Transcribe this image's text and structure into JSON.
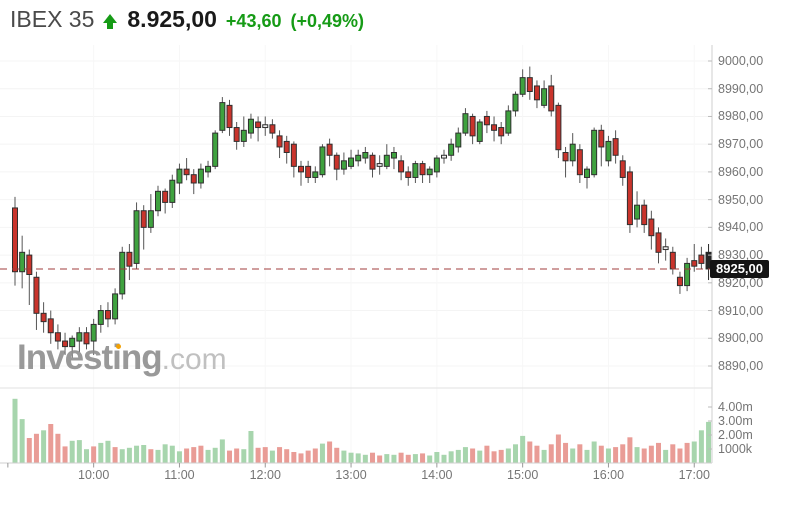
{
  "header": {
    "symbol": "IBEX 35",
    "last_price": "8.925,00",
    "change": "+43,60",
    "change_percent": "(+0,49%)",
    "direction": "up",
    "up_color": "#169b16"
  },
  "watermark": {
    "brand": "Investing",
    "suffix": ".com"
  },
  "chart_data": {
    "type": "candlestick",
    "title": "IBEX 35 intraday 5-minute candlestick chart with volume",
    "legend_position": "none",
    "grid": "on",
    "price_axis": {
      "min": 8890,
      "max": 9000,
      "step": 10,
      "labels": [
        "9000,00",
        "8990,00",
        "8980,00",
        "8970,00",
        "8960,00",
        "8950,00",
        "8940,00",
        "8930,00",
        "8920,00",
        "8910,00",
        "8900,00",
        "8890,00"
      ],
      "values": [
        9000,
        8990,
        8980,
        8970,
        8960,
        8950,
        8940,
        8930,
        8920,
        8910,
        8900,
        8890
      ]
    },
    "volume_axis": {
      "unit": "shares",
      "labels": [
        "4.00m",
        "3.00m",
        "2.00m",
        "1000k"
      ],
      "values": [
        4,
        3,
        2,
        1
      ]
    },
    "time_axis": {
      "labels": [
        "10:00",
        "11:00",
        "12:00",
        "13:00",
        "14:00",
        "15:00",
        "16:00",
        "17:00"
      ],
      "candle_indices": [
        11,
        23,
        35,
        47,
        59,
        71,
        83,
        95
      ],
      "extra_tick_indices": [
        -1
      ]
    },
    "last_price_line": {
      "value": 8925.0,
      "label": "8925,00"
    },
    "candles": [
      [
        8947,
        8951,
        8919,
        8924
      ],
      [
        8924,
        8937,
        8918,
        8931
      ],
      [
        8930,
        8932,
        8912,
        8923
      ],
      [
        8922,
        8924,
        8903,
        8909
      ],
      [
        8909,
        8913,
        8902,
        8906
      ],
      [
        8907,
        8910,
        8898,
        8902
      ],
      [
        8902,
        8905,
        8896,
        8899
      ],
      [
        8899,
        8902,
        8894,
        8897
      ],
      [
        8897,
        8901,
        8893,
        8900
      ],
      [
        8899,
        8904,
        8895,
        8902
      ],
      [
        8902,
        8904,
        8896,
        8898
      ],
      [
        8899,
        8907,
        8894,
        8905
      ],
      [
        8905,
        8912,
        8902,
        8910
      ],
      [
        8910,
        8913,
        8904,
        8907
      ],
      [
        8907,
        8918,
        8905,
        8916
      ],
      [
        8916,
        8933,
        8914,
        8931
      ],
      [
        8931,
        8934,
        8921,
        8926
      ],
      [
        8927,
        8949,
        8925,
        8946
      ],
      [
        8946,
        8948,
        8932,
        8940
      ],
      [
        8940,
        8952,
        8938,
        8946
      ],
      [
        8946,
        8955,
        8944,
        8953
      ],
      [
        8953,
        8954,
        8945,
        8949
      ],
      [
        8949,
        8959,
        8947,
        8957
      ],
      [
        8956,
        8963,
        8952,
        8961
      ],
      [
        8961,
        8965,
        8957,
        8959
      ],
      [
        8959,
        8961,
        8952,
        8956
      ],
      [
        8956,
        8963,
        8954,
        8961
      ],
      [
        8960,
        8964,
        8958,
        8962
      ],
      [
        8962,
        8975,
        8961,
        8974
      ],
      [
        8975,
        8987,
        8974,
        8985
      ],
      [
        8984,
        8986,
        8973,
        8976
      ],
      [
        8976,
        8978,
        8968,
        8971
      ],
      [
        8971,
        8980,
        8969,
        8975
      ],
      [
        8974,
        8981,
        8972,
        8979
      ],
      [
        8978,
        8980,
        8971,
        8976
      ],
      [
        8976,
        8980,
        8973,
        8977
      ],
      [
        8977,
        8979,
        8972,
        8974
      ],
      [
        8973,
        8975,
        8965,
        8969
      ],
      [
        8971,
        8973,
        8963,
        8967
      ],
      [
        8970,
        8971,
        8958,
        8962
      ],
      [
        8962,
        8964,
        8955,
        8960
      ],
      [
        8962,
        8964,
        8956,
        8958
      ],
      [
        8958,
        8962,
        8956,
        8960
      ],
      [
        8959,
        8970,
        8958,
        8969
      ],
      [
        8970,
        8972,
        8962,
        8966
      ],
      [
        8966,
        8967,
        8957,
        8961
      ],
      [
        8961,
        8967,
        8959,
        8964
      ],
      [
        8962,
        8968,
        8961,
        8965
      ],
      [
        8964,
        8968,
        8962,
        8966
      ],
      [
        8965,
        8969,
        8963,
        8967
      ],
      [
        8966,
        8967,
        8958,
        8961
      ],
      [
        8963,
        8966,
        8959,
        8962
      ],
      [
        8962,
        8970,
        8961,
        8966
      ],
      [
        8965,
        8969,
        8961,
        8967
      ],
      [
        8964,
        8966,
        8957,
        8960
      ],
      [
        8960,
        8962,
        8955,
        8958
      ],
      [
        8958,
        8964,
        8956,
        8963
      ],
      [
        8963,
        8964,
        8956,
        8959
      ],
      [
        8959,
        8962,
        8956,
        8961
      ],
      [
        8960,
        8966,
        8958,
        8965
      ],
      [
        8965,
        8968,
        8963,
        8966
      ],
      [
        8966,
        8972,
        8964,
        8970
      ],
      [
        8969,
        8976,
        8967,
        8974
      ],
      [
        8974,
        8983,
        8973,
        8981
      ],
      [
        8980,
        8981,
        8970,
        8973
      ],
      [
        8971,
        8979,
        8970,
        8978
      ],
      [
        8980,
        8982,
        8974,
        8977
      ],
      [
        8977,
        8980,
        8971,
        8975
      ],
      [
        8976,
        8978,
        8970,
        8973
      ],
      [
        8974,
        8984,
        8973,
        8982
      ],
      [
        8982,
        8989,
        8980,
        8988
      ],
      [
        8988,
        8997,
        8987,
        8994
      ],
      [
        8994,
        8998,
        8986,
        8989
      ],
      [
        8991,
        8993,
        8983,
        8986
      ],
      [
        8984,
        8993,
        8983,
        8990
      ],
      [
        8991,
        8995,
        8980,
        8982
      ],
      [
        8984,
        8985,
        8965,
        8968
      ],
      [
        8967,
        8969,
        8958,
        8964
      ],
      [
        8964,
        8974,
        8962,
        8970
      ],
      [
        8968,
        8970,
        8956,
        8959
      ],
      [
        8958,
        8962,
        8954,
        8961
      ],
      [
        8959,
        8976,
        8958,
        8975
      ],
      [
        8975,
        8977,
        8962,
        8969
      ],
      [
        8964,
        8973,
        8962,
        8971
      ],
      [
        8972,
        8975,
        8963,
        8966
      ],
      [
        8964,
        8966,
        8955,
        8958
      ],
      [
        8960,
        8962,
        8938,
        8941
      ],
      [
        8943,
        8953,
        8940,
        8948
      ],
      [
        8948,
        8950,
        8938,
        8941
      ],
      [
        8943,
        8946,
        8932,
        8937
      ],
      [
        8938,
        8940,
        8927,
        8931
      ],
      [
        8933,
        8936,
        8928,
        8932
      ],
      [
        8931,
        8933,
        8923,
        8925
      ],
      [
        8922,
        8924,
        8916,
        8919
      ],
      [
        8919,
        8929,
        8917,
        8927
      ],
      [
        8928,
        8934,
        8924,
        8926
      ],
      [
        8930,
        8933,
        8925,
        8927
      ],
      [
        8931,
        8934,
        8921,
        8925
      ]
    ],
    "volume": [
      [
        4.55,
        "g"
      ],
      [
        3.1,
        "g"
      ],
      [
        1.75,
        "r"
      ],
      [
        2.05,
        "r"
      ],
      [
        2.3,
        "g"
      ],
      [
        2.75,
        "r"
      ],
      [
        2.05,
        "r"
      ],
      [
        1.15,
        "r"
      ],
      [
        1.55,
        "g"
      ],
      [
        1.6,
        "g"
      ],
      [
        0.95,
        "g"
      ],
      [
        1.15,
        "r"
      ],
      [
        1.4,
        "g"
      ],
      [
        1.55,
        "g"
      ],
      [
        1.1,
        "r"
      ],
      [
        0.95,
        "g"
      ],
      [
        1.05,
        "g"
      ],
      [
        1.2,
        "g"
      ],
      [
        1.25,
        "g"
      ],
      [
        0.95,
        "r"
      ],
      [
        0.9,
        "g"
      ],
      [
        1.3,
        "g"
      ],
      [
        1.2,
        "g"
      ],
      [
        0.8,
        "g"
      ],
      [
        1.0,
        "r"
      ],
      [
        1.1,
        "r"
      ],
      [
        1.2,
        "r"
      ],
      [
        0.9,
        "g"
      ],
      [
        1.05,
        "g"
      ],
      [
        1.65,
        "g"
      ],
      [
        0.85,
        "r"
      ],
      [
        1.0,
        "r"
      ],
      [
        0.95,
        "g"
      ],
      [
        2.25,
        "g"
      ],
      [
        1.05,
        "r"
      ],
      [
        1.1,
        "r"
      ],
      [
        0.85,
        "g"
      ],
      [
        1.1,
        "r"
      ],
      [
        0.95,
        "r"
      ],
      [
        0.75,
        "r"
      ],
      [
        0.65,
        "r"
      ],
      [
        0.85,
        "r"
      ],
      [
        1.0,
        "r"
      ],
      [
        1.35,
        "g"
      ],
      [
        1.5,
        "r"
      ],
      [
        1.05,
        "r"
      ],
      [
        0.85,
        "g"
      ],
      [
        0.7,
        "g"
      ],
      [
        0.65,
        "g"
      ],
      [
        0.55,
        "g"
      ],
      [
        0.7,
        "r"
      ],
      [
        0.5,
        "r"
      ],
      [
        0.6,
        "g"
      ],
      [
        0.55,
        "g"
      ],
      [
        0.7,
        "r"
      ],
      [
        0.55,
        "r"
      ],
      [
        0.6,
        "g"
      ],
      [
        0.65,
        "r"
      ],
      [
        0.5,
        "g"
      ],
      [
        0.75,
        "g"
      ],
      [
        0.55,
        "g"
      ],
      [
        0.8,
        "g"
      ],
      [
        0.9,
        "g"
      ],
      [
        1.1,
        "g"
      ],
      [
        1.0,
        "r"
      ],
      [
        0.85,
        "g"
      ],
      [
        1.2,
        "r"
      ],
      [
        0.8,
        "r"
      ],
      [
        0.9,
        "r"
      ],
      [
        1.0,
        "g"
      ],
      [
        1.3,
        "g"
      ],
      [
        1.9,
        "g"
      ],
      [
        1.5,
        "r"
      ],
      [
        1.2,
        "r"
      ],
      [
        0.9,
        "g"
      ],
      [
        1.3,
        "r"
      ],
      [
        2.0,
        "r"
      ],
      [
        1.4,
        "r"
      ],
      [
        1.0,
        "g"
      ],
      [
        1.3,
        "r"
      ],
      [
        0.9,
        "g"
      ],
      [
        1.5,
        "g"
      ],
      [
        1.2,
        "r"
      ],
      [
        1.0,
        "g"
      ],
      [
        1.1,
        "r"
      ],
      [
        1.3,
        "r"
      ],
      [
        1.8,
        "r"
      ],
      [
        1.1,
        "g"
      ],
      [
        1.0,
        "r"
      ],
      [
        1.2,
        "r"
      ],
      [
        1.4,
        "r"
      ],
      [
        0.9,
        "g"
      ],
      [
        1.3,
        "r"
      ],
      [
        1.0,
        "r"
      ],
      [
        1.4,
        "r"
      ],
      [
        1.5,
        "g"
      ],
      [
        2.3,
        "g"
      ],
      [
        2.9,
        "g"
      ]
    ],
    "colors": {
      "up": "#3fa23f",
      "down": "#c9342c",
      "body_border": "#2f2f2f",
      "wick": "#555555",
      "doji_fill": "#ececec",
      "current": "#262626",
      "vol_up": "#a7d5ad",
      "vol_down": "#e99c96",
      "last_price_line": "#a03c3c",
      "grid": "#f4f4f4",
      "axis": "#cfcfcf"
    }
  }
}
